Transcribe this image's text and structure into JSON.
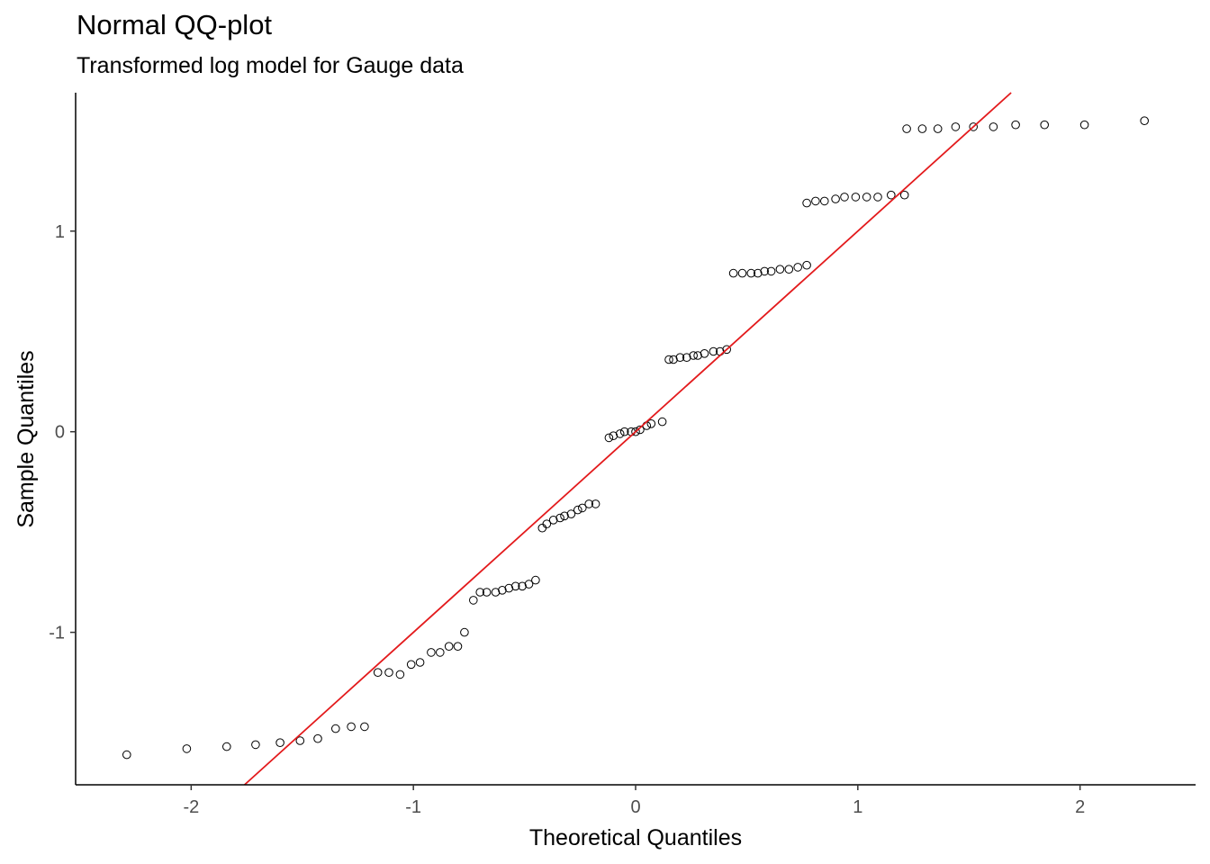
{
  "chart_data": {
    "type": "scatter",
    "title": "Normal QQ-plot",
    "subtitle": "Transformed log model for Gauge data",
    "xlabel": "Theoretical Quantiles",
    "ylabel": "Sample Quantiles",
    "xlim": [
      -2.52,
      2.52
    ],
    "ylim": [
      -1.76,
      1.69
    ],
    "x_ticks": [
      -2,
      -1,
      0,
      1,
      2
    ],
    "x_tick_labels": [
      "-2",
      "-1",
      "0",
      "1",
      "2"
    ],
    "y_ticks": [
      -1,
      0,
      1
    ],
    "y_tick_labels": [
      "-1",
      "0",
      "1"
    ],
    "grid": false,
    "colors": {
      "points": "#000000",
      "reference_line": "#e31a1c"
    },
    "reference_line": {
      "intercept": 0,
      "slope": 1
    },
    "series": [
      {
        "values": [
          {
            "x": -2.29,
            "y": -1.61
          },
          {
            "x": -2.02,
            "y": -1.58
          },
          {
            "x": -1.84,
            "y": -1.57
          },
          {
            "x": -1.71,
            "y": -1.56
          },
          {
            "x": -1.6,
            "y": -1.55
          },
          {
            "x": -1.51,
            "y": -1.54
          },
          {
            "x": -1.43,
            "y": -1.53
          },
          {
            "x": -1.35,
            "y": -1.48
          },
          {
            "x": -1.28,
            "y": -1.47
          },
          {
            "x": -1.22,
            "y": -1.47
          },
          {
            "x": -1.16,
            "y": -1.2
          },
          {
            "x": -1.11,
            "y": -1.2
          },
          {
            "x": -1.06,
            "y": -1.21
          },
          {
            "x": -1.01,
            "y": -1.16
          },
          {
            "x": -0.97,
            "y": -1.15
          },
          {
            "x": -0.92,
            "y": -1.1
          },
          {
            "x": -0.88,
            "y": -1.1
          },
          {
            "x": -0.84,
            "y": -1.07
          },
          {
            "x": -0.8,
            "y": -1.07
          },
          {
            "x": -0.77,
            "y": -1.0
          },
          {
            "x": -0.73,
            "y": -0.84
          },
          {
            "x": -0.7,
            "y": -0.8
          },
          {
            "x": -0.67,
            "y": -0.8
          },
          {
            "x": -0.63,
            "y": -0.8
          },
          {
            "x": -0.6,
            "y": -0.79
          },
          {
            "x": -0.57,
            "y": -0.78
          },
          {
            "x": -0.54,
            "y": -0.77
          },
          {
            "x": -0.51,
            "y": -0.77
          },
          {
            "x": -0.48,
            "y": -0.76
          },
          {
            "x": -0.45,
            "y": -0.74
          },
          {
            "x": -0.42,
            "y": -0.48
          },
          {
            "x": -0.4,
            "y": -0.46
          },
          {
            "x": -0.37,
            "y": -0.44
          },
          {
            "x": -0.34,
            "y": -0.43
          },
          {
            "x": -0.32,
            "y": -0.42
          },
          {
            "x": -0.29,
            "y": -0.41
          },
          {
            "x": -0.26,
            "y": -0.39
          },
          {
            "x": -0.24,
            "y": -0.38
          },
          {
            "x": -0.21,
            "y": -0.36
          },
          {
            "x": -0.18,
            "y": -0.36
          },
          {
            "x": -0.12,
            "y": -0.03
          },
          {
            "x": -0.1,
            "y": -0.02
          },
          {
            "x": -0.07,
            "y": -0.01
          },
          {
            "x": -0.05,
            "y": 0.0
          },
          {
            "x": -0.02,
            "y": 0.0
          },
          {
            "x": 0.0,
            "y": 0.0
          },
          {
            "x": 0.02,
            "y": 0.01
          },
          {
            "x": 0.05,
            "y": 0.03
          },
          {
            "x": 0.07,
            "y": 0.04
          },
          {
            "x": 0.12,
            "y": 0.05
          },
          {
            "x": 0.15,
            "y": 0.36
          },
          {
            "x": 0.17,
            "y": 0.36
          },
          {
            "x": 0.2,
            "y": 0.37
          },
          {
            "x": 0.23,
            "y": 0.37
          },
          {
            "x": 0.26,
            "y": 0.38
          },
          {
            "x": 0.28,
            "y": 0.38
          },
          {
            "x": 0.31,
            "y": 0.39
          },
          {
            "x": 0.35,
            "y": 0.4
          },
          {
            "x": 0.38,
            "y": 0.4
          },
          {
            "x": 0.41,
            "y": 0.41
          },
          {
            "x": 0.44,
            "y": 0.79
          },
          {
            "x": 0.48,
            "y": 0.79
          },
          {
            "x": 0.52,
            "y": 0.79
          },
          {
            "x": 0.55,
            "y": 0.79
          },
          {
            "x": 0.58,
            "y": 0.8
          },
          {
            "x": 0.61,
            "y": 0.8
          },
          {
            "x": 0.65,
            "y": 0.81
          },
          {
            "x": 0.69,
            "y": 0.81
          },
          {
            "x": 0.73,
            "y": 0.82
          },
          {
            "x": 0.77,
            "y": 0.83
          },
          {
            "x": 0.77,
            "y": 1.14
          },
          {
            "x": 0.81,
            "y": 1.15
          },
          {
            "x": 0.85,
            "y": 1.15
          },
          {
            "x": 0.9,
            "y": 1.16
          },
          {
            "x": 0.94,
            "y": 1.17
          },
          {
            "x": 0.99,
            "y": 1.17
          },
          {
            "x": 1.04,
            "y": 1.17
          },
          {
            "x": 1.09,
            "y": 1.17
          },
          {
            "x": 1.15,
            "y": 1.18
          },
          {
            "x": 1.21,
            "y": 1.18
          },
          {
            "x": 1.22,
            "y": 1.51
          },
          {
            "x": 1.29,
            "y": 1.51
          },
          {
            "x": 1.36,
            "y": 1.51
          },
          {
            "x": 1.44,
            "y": 1.52
          },
          {
            "x": 1.52,
            "y": 1.52
          },
          {
            "x": 1.61,
            "y": 1.52
          },
          {
            "x": 1.71,
            "y": 1.53
          },
          {
            "x": 1.84,
            "y": 1.53
          },
          {
            "x": 2.02,
            "y": 1.53
          },
          {
            "x": 2.29,
            "y": 1.55
          }
        ]
      }
    ]
  }
}
